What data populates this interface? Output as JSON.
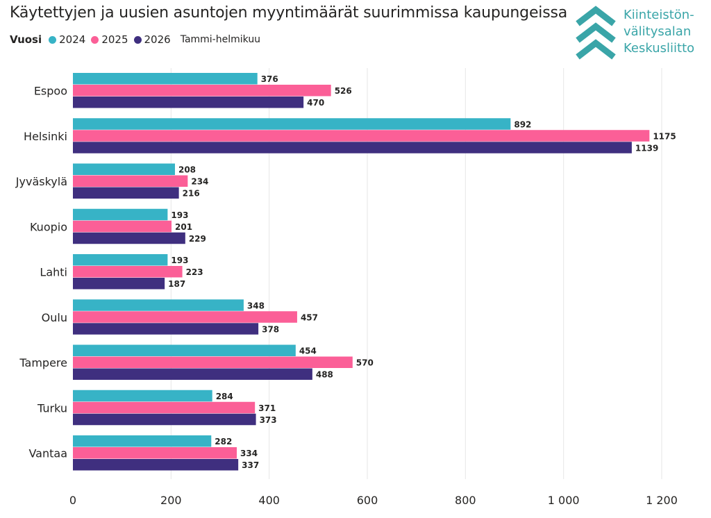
{
  "header": {
    "title": "Käytettyjen ja uusien asuntojen myyntimäärät suurimmissa kaupungeissa",
    "note": "Tammi-helmikuu"
  },
  "logo": {
    "line1": "Kiinteistön-",
    "line2": "välitysalan",
    "line3": "Keskusliitto",
    "color": "#3aa5a8"
  },
  "chart_data": {
    "type": "bar",
    "orientation": "horizontal",
    "title": "Käytettyjen ja uusien asuntojen myyntimäärät suurimmissa kaupungeissa",
    "legend_title": "Vuosi",
    "legend_position": "top-left",
    "categories": [
      "Espoo",
      "Helsinki",
      "Jyväskylä",
      "Kuopio",
      "Lahti",
      "Oulu",
      "Tampere",
      "Turku",
      "Vantaa"
    ],
    "series": [
      {
        "name": "2024",
        "color": "#37b3c6",
        "values": [
          376,
          892,
          208,
          193,
          193,
          348,
          454,
          284,
          282
        ]
      },
      {
        "name": "2025",
        "color": "#fb5f97",
        "values": [
          526,
          1175,
          234,
          201,
          223,
          457,
          570,
          371,
          334
        ]
      },
      {
        "name": "2026",
        "color": "#3f2f7f",
        "values": [
          470,
          1139,
          216,
          229,
          187,
          378,
          488,
          373,
          337
        ]
      }
    ],
    "xlim": [
      0,
      1200
    ],
    "xticks": [
      0,
      200,
      400,
      600,
      800,
      1000,
      1200
    ],
    "xtick_labels": [
      "0",
      "200",
      "400",
      "600",
      "800",
      "1 000",
      "1 200"
    ],
    "grid": true
  }
}
